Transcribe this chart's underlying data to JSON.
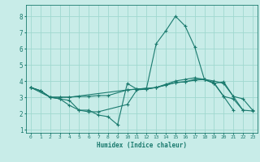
{
  "xlabel": "Humidex (Indice chaleur)",
  "bg_color": "#c8ece8",
  "grid_color": "#a0d8d0",
  "line_color": "#1a7a6e",
  "xlim": [
    -0.5,
    23.5
  ],
  "ylim": [
    0.8,
    8.7
  ],
  "yticks": [
    1,
    2,
    3,
    4,
    5,
    6,
    7,
    8
  ],
  "xticks": [
    0,
    1,
    2,
    3,
    4,
    5,
    6,
    7,
    8,
    9,
    10,
    11,
    12,
    13,
    14,
    15,
    16,
    17,
    18,
    19,
    20,
    21,
    22,
    23
  ],
  "lines": [
    {
      "x": [
        0,
        1,
        2,
        3,
        4,
        5,
        6,
        7,
        8,
        9,
        10,
        11,
        12,
        13,
        14,
        15,
        16,
        17,
        18,
        19,
        20,
        21
      ],
      "y": [
        3.6,
        3.4,
        3.0,
        2.9,
        2.5,
        2.2,
        2.2,
        1.9,
        1.8,
        1.3,
        3.85,
        3.5,
        3.5,
        3.6,
        3.75,
        3.9,
        3.95,
        4.05,
        4.1,
        3.9,
        3.05,
        2.2
      ]
    },
    {
      "x": [
        0,
        1,
        2,
        3,
        4,
        5,
        6,
        7,
        10,
        11,
        12,
        13,
        14,
        15,
        16,
        17,
        18,
        19,
        20,
        21,
        22
      ],
      "y": [
        3.6,
        3.4,
        3.0,
        2.9,
        2.8,
        2.2,
        2.1,
        2.1,
        2.55,
        3.45,
        3.5,
        3.6,
        3.8,
        4.0,
        4.1,
        4.2,
        4.1,
        3.85,
        3.05,
        2.9,
        2.2
      ]
    },
    {
      "x": [
        0,
        1,
        2,
        3,
        4,
        5,
        6,
        7,
        8,
        10,
        11,
        12,
        13,
        14,
        15,
        16,
        17,
        18,
        19,
        20,
        21,
        22,
        23
      ],
      "y": [
        3.6,
        3.4,
        3.0,
        3.0,
        3.0,
        3.05,
        3.05,
        3.1,
        3.1,
        3.45,
        3.5,
        3.55,
        6.3,
        7.1,
        8.0,
        7.4,
        6.1,
        4.1,
        3.85,
        3.95,
        3.05,
        2.9,
        2.2
      ]
    },
    {
      "x": [
        0,
        2,
        3,
        4,
        10,
        11,
        12,
        13,
        14,
        15,
        16,
        17,
        18,
        19,
        20,
        21,
        22,
        23
      ],
      "y": [
        3.6,
        3.0,
        3.0,
        3.0,
        3.45,
        3.5,
        3.55,
        3.6,
        3.75,
        3.9,
        3.95,
        4.1,
        4.1,
        4.0,
        3.85,
        3.05,
        2.2,
        2.15
      ]
    }
  ]
}
